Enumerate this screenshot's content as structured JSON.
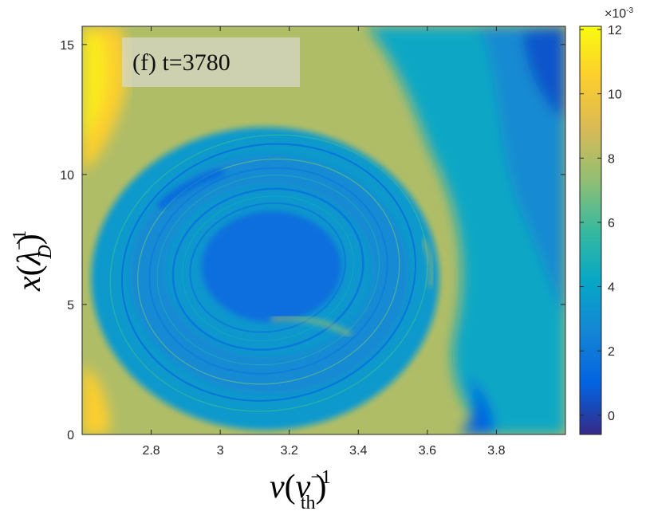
{
  "chart_data": {
    "type": "heatmap",
    "annotation": "(f) t=3780",
    "xlabel": {
      "main": "v",
      "open": "(",
      "sym": "v",
      "sup": "−1",
      "sub": "th",
      "close": ")"
    },
    "ylabel": {
      "main": "x",
      "open": "(",
      "sym": "λ",
      "sup": "−1",
      "sub": "D",
      "close": ")"
    },
    "xlim": [
      2.6,
      4.0
    ],
    "ylim": [
      0,
      15.7
    ],
    "xticks": [
      2.8,
      3.0,
      3.2,
      3.4,
      3.6,
      3.8
    ],
    "xtick_labels": [
      "2.8",
      "3",
      "3.2",
      "3.4",
      "3.6",
      "3.8"
    ],
    "yticks": [
      0,
      5,
      10,
      15
    ],
    "ytick_labels": [
      "0",
      "5",
      "10",
      "15"
    ],
    "colorbar": {
      "multiplier": "×10",
      "exponent": "-3",
      "range": [
        -0.6,
        12.1
      ],
      "ticks": [
        0,
        2,
        4,
        6,
        8,
        10,
        12
      ],
      "tick_labels": [
        "0",
        "2",
        "4",
        "6",
        "8",
        "10",
        "12"
      ],
      "colormap": "parula"
    },
    "field_features": {
      "background_level": 8,
      "vortex_center": [
        3.13,
        6.3
      ],
      "vortex_radii_data": [
        0.46,
        6.3
      ],
      "vortex_inner_level": 1.5,
      "vortex_ring_level": 3.5,
      "left_edge_level": 10.5,
      "right_edge_level": 1.5
    }
  }
}
